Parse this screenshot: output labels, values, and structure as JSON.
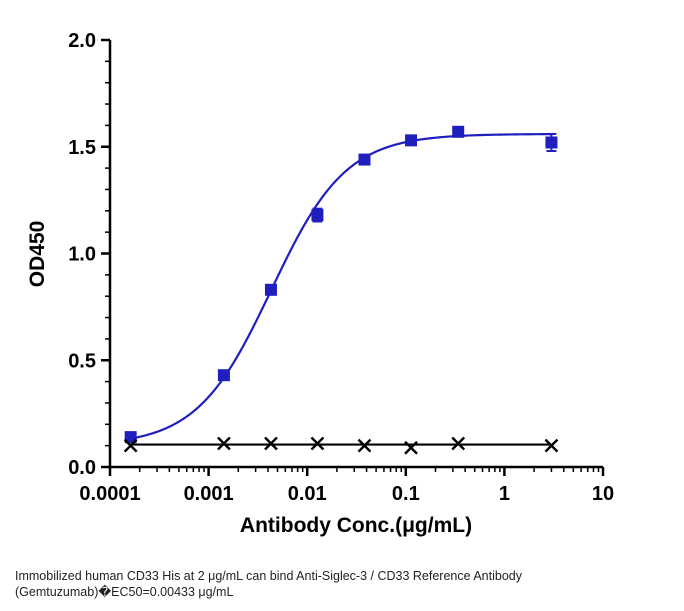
{
  "chart_data": {
    "type": "scatter",
    "title": "",
    "xlabel": "Antibody Conc.(μg/mL)",
    "ylabel": "OD450",
    "xscale": "log",
    "xlim": [
      0.0001,
      10
    ],
    "ylim": [
      0,
      2.0
    ],
    "x_ticks": [
      "0.0001",
      "0.001",
      "0.01",
      "0.1",
      "1",
      "10"
    ],
    "y_ticks": [
      "0.0",
      "0.5",
      "1.0",
      "1.5",
      "2.0"
    ],
    "grid": false,
    "legend": "none",
    "series": [
      {
        "marker": "square",
        "color": "#1f1fbf",
        "fit": "sigmoidal 4PL",
        "x": [
          0.000162,
          0.00143,
          0.00429,
          0.0127,
          0.0381,
          0.113,
          0.34,
          3.0
        ],
        "y": [
          0.14,
          0.43,
          0.83,
          1.18,
          1.44,
          1.53,
          1.57,
          1.52
        ],
        "error": [
          0.0,
          0.0,
          0.0,
          0.03,
          0.0,
          0.0,
          0.0,
          0.04
        ],
        "fit_params": {
          "bottom": 0.1,
          "top": 1.56,
          "ec50": 0.00433,
          "hill": 1.15
        }
      },
      {
        "marker": "x",
        "color": "#000000",
        "fit": "flat",
        "x": [
          0.000162,
          0.00143,
          0.00429,
          0.0127,
          0.0381,
          0.113,
          0.34,
          3.0
        ],
        "y": [
          0.1,
          0.11,
          0.11,
          0.11,
          0.1,
          0.09,
          0.11,
          0.1
        ],
        "fit_level": 0.105
      }
    ]
  },
  "caption": {
    "line1": "Immobilized human CD33 His at 2  μg/mL can bind  Anti-Siglec-3 / CD33 Reference Antibody",
    "line2": "(Gemtuzumab)�EC50=0.00433 μg/mL"
  }
}
